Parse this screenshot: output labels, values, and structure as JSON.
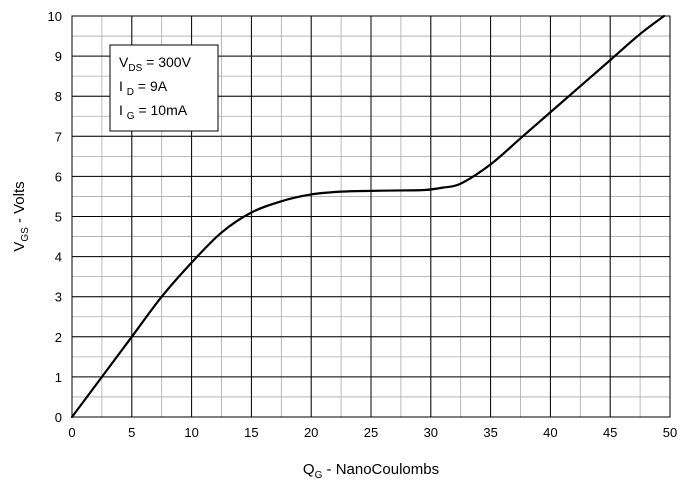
{
  "chart_data": {
    "type": "line",
    "xlabel": {
      "main": "Q",
      "sub": "G",
      "rest": " - NanoCoulombs"
    },
    "ylabel": {
      "main": "V",
      "sub": "GS",
      "rest": " - Volts"
    },
    "xlim": [
      0,
      50
    ],
    "ylim": [
      0,
      10
    ],
    "x_ticks": [
      "0",
      "5",
      "10",
      "15",
      "20",
      "25",
      "30",
      "35",
      "40",
      "45",
      "50"
    ],
    "y_ticks": [
      "0",
      "1",
      "2",
      "3",
      "4",
      "5",
      "6",
      "7",
      "8",
      "9",
      "10"
    ],
    "grid": {
      "major": true,
      "minor": true,
      "x_minor_step": 2.5,
      "y_minor_step": 0.5
    },
    "annotation": [
      {
        "main": "V",
        "sub": "DS",
        "rest": " = 300V"
      },
      {
        "main": "I ",
        "sub": "D",
        "rest": " = 9A"
      },
      {
        "main": "I ",
        "sub": "G",
        "rest": " = 10mA"
      }
    ],
    "series": [
      {
        "x": [
          0,
          2.5,
          5,
          7.5,
          10,
          12.5,
          15,
          17.5,
          20,
          22.5,
          25,
          27.5,
          29.5,
          31,
          32.5,
          35,
          37.5,
          40,
          42.5,
          45,
          47.5,
          49.5
        ],
        "y": [
          0,
          1.0,
          2.0,
          3.0,
          3.85,
          4.6,
          5.1,
          5.38,
          5.55,
          5.62,
          5.64,
          5.65,
          5.66,
          5.72,
          5.82,
          6.3,
          6.95,
          7.6,
          8.25,
          8.9,
          9.55,
          10.0
        ]
      }
    ]
  }
}
